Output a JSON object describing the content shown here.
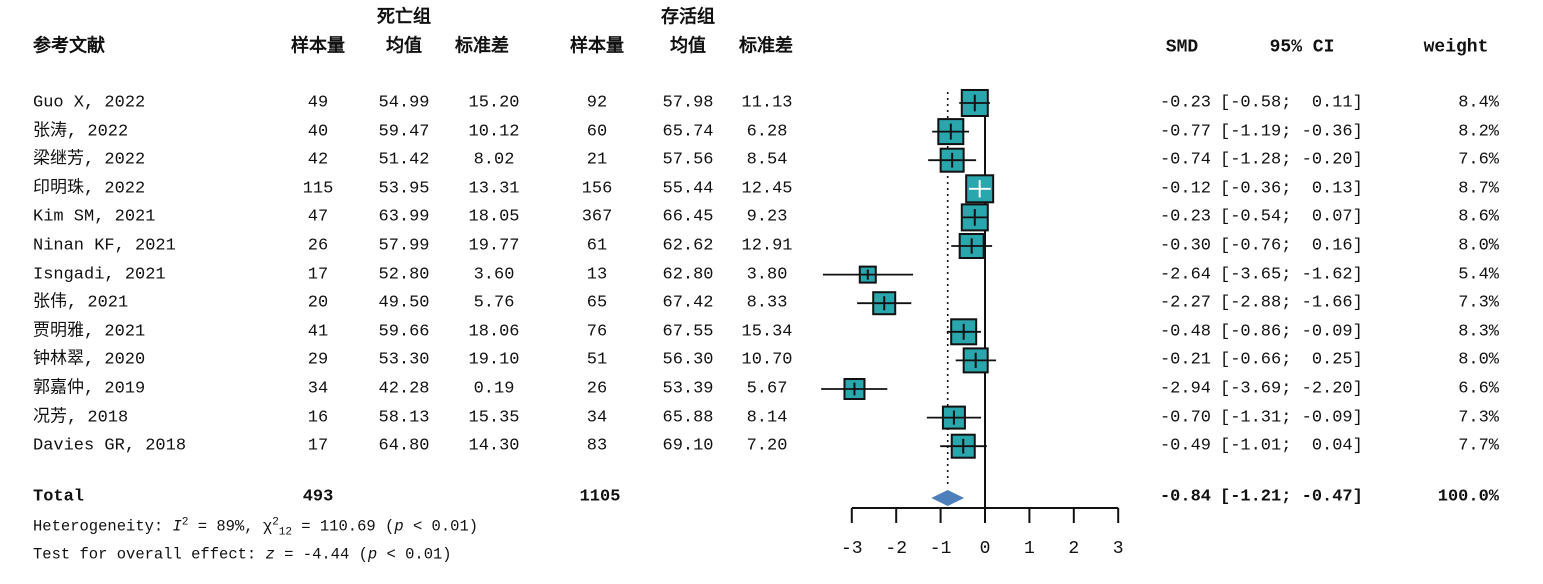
{
  "header": {
    "study_col": "参考文献",
    "group1_label": "死亡组",
    "group2_label": "存活组",
    "n_label": "样本量",
    "mean_label": "均值",
    "sd_label": "标准差",
    "smd_label": "SMD",
    "ci_label": "95% CI",
    "weight_label": "weight"
  },
  "chart_data": {
    "type": "forest",
    "effect_measure": "SMD",
    "axis": {
      "ticks": [
        -3,
        -2,
        -1,
        0,
        1,
        2,
        3
      ],
      "tick_labels": [
        "-3",
        "-2",
        "-1",
        "0",
        "1",
        "2",
        "3"
      ],
      "xlim": [
        -3,
        3
      ],
      "null_line": 0,
      "overall_dotted_line": -0.84
    },
    "colors": {
      "square_fill": "#2aa7ac",
      "square_border": "#111111",
      "diamond_fill": "#4d80ba",
      "line": "#111111",
      "inner_ci_line": "#ffffff"
    },
    "studies": [
      {
        "study": "Guo X, 2022",
        "n1": "49",
        "mean1": "54.99",
        "sd1": "15.20",
        "n2": "92",
        "mean2": "57.98",
        "sd2": "11.13",
        "smd": -0.23,
        "lo": -0.58,
        "hi": 0.11,
        "smd_text": "-0.23",
        "ci_text": "[-0.58;  0.11]",
        "weight": 8.4,
        "weight_text": "8.4%"
      },
      {
        "study": "张涛, 2022",
        "n1": "40",
        "mean1": "59.47",
        "sd1": "10.12",
        "n2": "60",
        "mean2": "65.74",
        "sd2": "6.28",
        "smd": -0.77,
        "lo": -1.19,
        "hi": -0.36,
        "smd_text": "-0.77",
        "ci_text": "[-1.19; -0.36]",
        "weight": 8.2,
        "weight_text": "8.2%"
      },
      {
        "study": "梁继芳, 2022",
        "n1": "42",
        "mean1": "51.42",
        "sd1": "8.02",
        "n2": "21",
        "mean2": "57.56",
        "sd2": "8.54",
        "smd": -0.74,
        "lo": -1.28,
        "hi": -0.2,
        "smd_text": "-0.74",
        "ci_text": "[-1.28; -0.20]",
        "weight": 7.6,
        "weight_text": "7.6%"
      },
      {
        "study": "印明珠, 2022",
        "n1": "115",
        "mean1": "53.95",
        "sd1": "13.31",
        "n2": "156",
        "mean2": "55.44",
        "sd2": "12.45",
        "smd": -0.12,
        "lo": -0.36,
        "hi": 0.13,
        "smd_text": "-0.12",
        "ci_text": "[-0.36;  0.13]",
        "weight": 8.7,
        "weight_text": "8.7%"
      },
      {
        "study": "Kim SM, 2021",
        "n1": "47",
        "mean1": "63.99",
        "sd1": "18.05",
        "n2": "367",
        "mean2": "66.45",
        "sd2": "9.23",
        "smd": -0.23,
        "lo": -0.54,
        "hi": 0.07,
        "smd_text": "-0.23",
        "ci_text": "[-0.54;  0.07]",
        "weight": 8.6,
        "weight_text": "8.6%"
      },
      {
        "study": "Ninan KF, 2021",
        "n1": "26",
        "mean1": "57.99",
        "sd1": "19.77",
        "n2": "61",
        "mean2": "62.62",
        "sd2": "12.91",
        "smd": -0.3,
        "lo": -0.76,
        "hi": 0.16,
        "smd_text": "-0.30",
        "ci_text": "[-0.76;  0.16]",
        "weight": 8.0,
        "weight_text": "8.0%"
      },
      {
        "study": "Isngadi, 2021",
        "n1": "17",
        "mean1": "52.80",
        "sd1": "3.60",
        "n2": "13",
        "mean2": "62.80",
        "sd2": "3.80",
        "smd": -2.64,
        "lo": -3.65,
        "hi": -1.62,
        "smd_text": "-2.64",
        "ci_text": "[-3.65; -1.62]",
        "weight": 5.4,
        "weight_text": "5.4%"
      },
      {
        "study": "张伟, 2021",
        "n1": "20",
        "mean1": "49.50",
        "sd1": "5.76",
        "n2": "65",
        "mean2": "67.42",
        "sd2": "8.33",
        "smd": -2.27,
        "lo": -2.88,
        "hi": -1.66,
        "smd_text": "-2.27",
        "ci_text": "[-2.88; -1.66]",
        "weight": 7.3,
        "weight_text": "7.3%"
      },
      {
        "study": "贾明雅, 2021",
        "n1": "41",
        "mean1": "59.66",
        "sd1": "18.06",
        "n2": "76",
        "mean2": "67.55",
        "sd2": "15.34",
        "smd": -0.48,
        "lo": -0.86,
        "hi": -0.09,
        "smd_text": "-0.48",
        "ci_text": "[-0.86; -0.09]",
        "weight": 8.3,
        "weight_text": "8.3%"
      },
      {
        "study": "钟林翠, 2020",
        "n1": "29",
        "mean1": "53.30",
        "sd1": "19.10",
        "n2": "51",
        "mean2": "56.30",
        "sd2": "10.70",
        "smd": -0.21,
        "lo": -0.66,
        "hi": 0.25,
        "smd_text": "-0.21",
        "ci_text": "[-0.66;  0.25]",
        "weight": 8.0,
        "weight_text": "8.0%"
      },
      {
        "study": "郭嘉仲, 2019",
        "n1": "34",
        "mean1": "42.28",
        "sd1": "0.19",
        "n2": "26",
        "mean2": "53.39",
        "sd2": "5.67",
        "smd": -2.94,
        "lo": -3.69,
        "hi": -2.2,
        "smd_text": "-2.94",
        "ci_text": "[-3.69; -2.20]",
        "weight": 6.6,
        "weight_text": "6.6%"
      },
      {
        "study": "况芳, 2018",
        "n1": "16",
        "mean1": "58.13",
        "sd1": "15.35",
        "n2": "34",
        "mean2": "65.88",
        "sd2": "8.14",
        "smd": -0.7,
        "lo": -1.31,
        "hi": -0.09,
        "smd_text": "-0.70",
        "ci_text": "[-1.31; -0.09]",
        "weight": 7.3,
        "weight_text": "7.3%"
      },
      {
        "study": "Davies GR, 2018",
        "n1": "17",
        "mean1": "64.80",
        "sd1": "14.30",
        "n2": "83",
        "mean2": "69.10",
        "sd2": "7.20",
        "smd": -0.49,
        "lo": -1.01,
        "hi": 0.04,
        "smd_text": "-0.49",
        "ci_text": "[-1.01;  0.04]",
        "weight": 7.7,
        "weight_text": "7.7%"
      }
    ],
    "total": {
      "label": "Total",
      "n1": "493",
      "n2": "1105",
      "smd": -0.84,
      "lo": -1.21,
      "hi": -0.47,
      "smd_text": "-0.84",
      "ci_text": "[-1.21; -0.47]",
      "weight_text": "100.0%"
    }
  },
  "footer": {
    "heterogeneity_parts": [
      {
        "t": "Heterogeneity: "
      },
      {
        "t": "I",
        "s": "it"
      },
      {
        "t": "2",
        "s": "sup"
      },
      {
        "t": " = 89%, "
      },
      {
        "t": "χ"
      },
      {
        "t": "2",
        "s": "sup"
      },
      {
        "t": "12",
        "s": "sub"
      },
      {
        "t": " = 110.69 ("
      },
      {
        "t": "p",
        "s": "it"
      },
      {
        "t": " < 0.01)"
      }
    ],
    "overall_effect_parts": [
      {
        "t": "Test for overall effect: "
      },
      {
        "t": "z",
        "s": "it"
      },
      {
        "t": " = -4.44 ("
      },
      {
        "t": "p",
        "s": "it"
      },
      {
        "t": " < 0.01)"
      }
    ]
  }
}
